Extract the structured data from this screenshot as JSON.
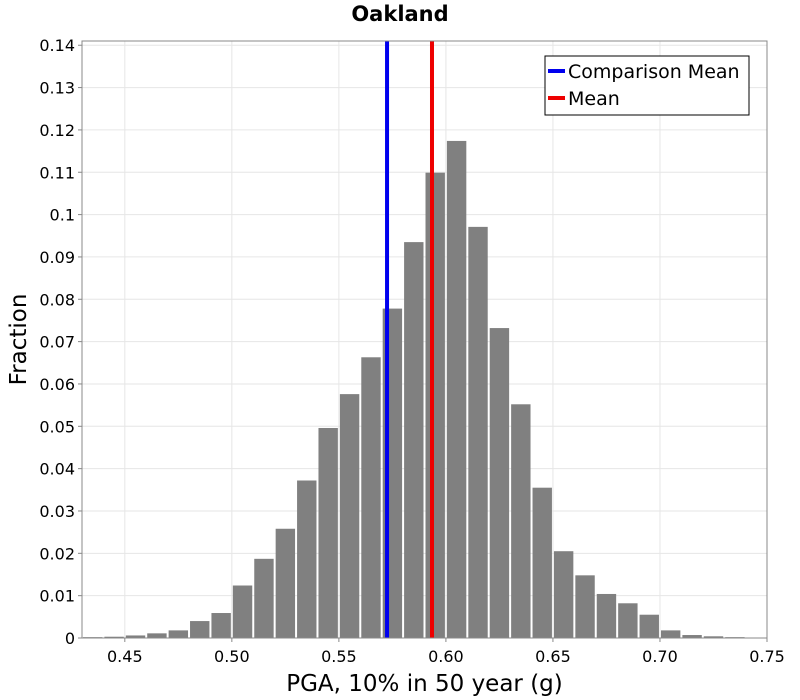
{
  "chart_data": {
    "type": "bar",
    "title": "Oakland",
    "xlabel": "PGA, 10% in 50 year (g)",
    "ylabel": "Fraction",
    "xlim": [
      0.43,
      0.75
    ],
    "ylim": [
      0,
      0.141
    ],
    "grid": true,
    "legend_placement": "top-right",
    "bin_width": 0.01,
    "x_ticks": [
      {
        "value": 0.45,
        "label": "0.45"
      },
      {
        "value": 0.5,
        "label": "0.50"
      },
      {
        "value": 0.55,
        "label": "0.55"
      },
      {
        "value": 0.6,
        "label": "0.60"
      },
      {
        "value": 0.65,
        "label": "0.65"
      },
      {
        "value": 0.7,
        "label": "0.70"
      },
      {
        "value": 0.75,
        "label": "0.75"
      }
    ],
    "y_ticks": [
      {
        "value": 0,
        "label": "0"
      },
      {
        "value": 0.01,
        "label": "0.01"
      },
      {
        "value": 0.02,
        "label": "0.02"
      },
      {
        "value": 0.03,
        "label": "0.03"
      },
      {
        "value": 0.04,
        "label": "0.04"
      },
      {
        "value": 0.05,
        "label": "0.05"
      },
      {
        "value": 0.06,
        "label": "0.06"
      },
      {
        "value": 0.07,
        "label": "0.07"
      },
      {
        "value": 0.08,
        "label": "0.08"
      },
      {
        "value": 0.09,
        "label": "0.09"
      },
      {
        "value": 0.1,
        "label": "0.1"
      },
      {
        "value": 0.11,
        "label": "0.11"
      },
      {
        "value": 0.12,
        "label": "0.12"
      },
      {
        "value": 0.13,
        "label": "0.13"
      },
      {
        "value": 0.14,
        "label": "0.14"
      }
    ],
    "bars": [
      {
        "x": 0.435,
        "y": 0.0002
      },
      {
        "x": 0.445,
        "y": 0.0003
      },
      {
        "x": 0.455,
        "y": 0.0006
      },
      {
        "x": 0.465,
        "y": 0.0011
      },
      {
        "x": 0.475,
        "y": 0.0018
      },
      {
        "x": 0.485,
        "y": 0.004
      },
      {
        "x": 0.495,
        "y": 0.0059
      },
      {
        "x": 0.505,
        "y": 0.0124
      },
      {
        "x": 0.515,
        "y": 0.0187
      },
      {
        "x": 0.525,
        "y": 0.0258
      },
      {
        "x": 0.535,
        "y": 0.0372
      },
      {
        "x": 0.545,
        "y": 0.0496
      },
      {
        "x": 0.555,
        "y": 0.0576
      },
      {
        "x": 0.565,
        "y": 0.0663
      },
      {
        "x": 0.575,
        "y": 0.0778
      },
      {
        "x": 0.585,
        "y": 0.0935
      },
      {
        "x": 0.595,
        "y": 0.1099
      },
      {
        "x": 0.605,
        "y": 0.1174
      },
      {
        "x": 0.615,
        "y": 0.0971
      },
      {
        "x": 0.625,
        "y": 0.0732
      },
      {
        "x": 0.635,
        "y": 0.0552
      },
      {
        "x": 0.645,
        "y": 0.0355
      },
      {
        "x": 0.655,
        "y": 0.0205
      },
      {
        "x": 0.665,
        "y": 0.0148
      },
      {
        "x": 0.675,
        "y": 0.0104
      },
      {
        "x": 0.685,
        "y": 0.0082
      },
      {
        "x": 0.695,
        "y": 0.0055
      },
      {
        "x": 0.705,
        "y": 0.0018
      },
      {
        "x": 0.715,
        "y": 0.0007
      },
      {
        "x": 0.725,
        "y": 0.0004
      },
      {
        "x": 0.735,
        "y": 0.0002
      }
    ],
    "reference_lines": [
      {
        "name": "Comparison Mean",
        "x": 0.5725,
        "color": "#0000ee"
      },
      {
        "name": "Mean",
        "x": 0.5935,
        "color": "#ee0000"
      }
    ],
    "bar_color": "#808080",
    "legend": [
      {
        "label": "Comparison Mean",
        "color": "#0000ee"
      },
      {
        "label": "Mean",
        "color": "#ee0000"
      }
    ]
  }
}
